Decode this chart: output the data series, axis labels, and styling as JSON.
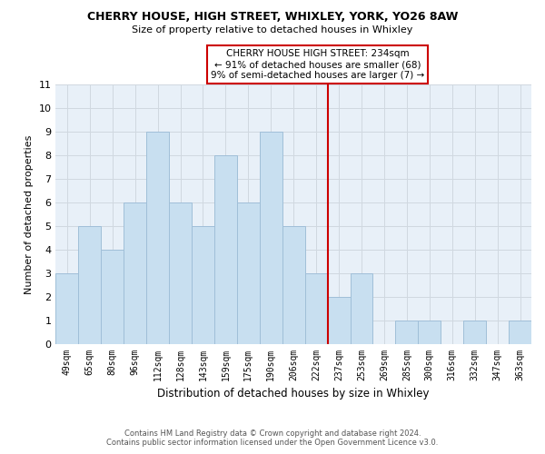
{
  "title": "CHERRY HOUSE, HIGH STREET, WHIXLEY, YORK, YO26 8AW",
  "subtitle": "Size of property relative to detached houses in Whixley",
  "xlabel": "Distribution of detached houses by size in Whixley",
  "ylabel": "Number of detached properties",
  "bin_labels": [
    "49sqm",
    "65sqm",
    "80sqm",
    "96sqm",
    "112sqm",
    "128sqm",
    "143sqm",
    "159sqm",
    "175sqm",
    "190sqm",
    "206sqm",
    "222sqm",
    "237sqm",
    "253sqm",
    "269sqm",
    "285sqm",
    "300sqm",
    "316sqm",
    "332sqm",
    "347sqm",
    "363sqm"
  ],
  "bar_heights": [
    3,
    5,
    4,
    6,
    9,
    6,
    5,
    8,
    6,
    9,
    5,
    3,
    2,
    3,
    0,
    1,
    1,
    0,
    1,
    0,
    1
  ],
  "bar_color": "#c8dff0",
  "bar_edge_color": "#a0bfd8",
  "reference_line_label": "237sqm",
  "reference_line_color": "#cc0000",
  "ylim": [
    0,
    11
  ],
  "yticks": [
    0,
    1,
    2,
    3,
    4,
    5,
    6,
    7,
    8,
    9,
    10,
    11
  ],
  "annotation_line0": "CHERRY HOUSE HIGH STREET: 234sqm",
  "annotation_line1": "← 91% of detached houses are smaller (68)",
  "annotation_line2": "9% of semi-detached houses are larger (7) →",
  "footnote1": "Contains HM Land Registry data © Crown copyright and database right 2024.",
  "footnote2": "Contains public sector information licensed under the Open Government Licence v3.0.",
  "grid_color": "#d0d8e0",
  "background_color": "#ffffff",
  "ann_box_color": "#cc0000"
}
